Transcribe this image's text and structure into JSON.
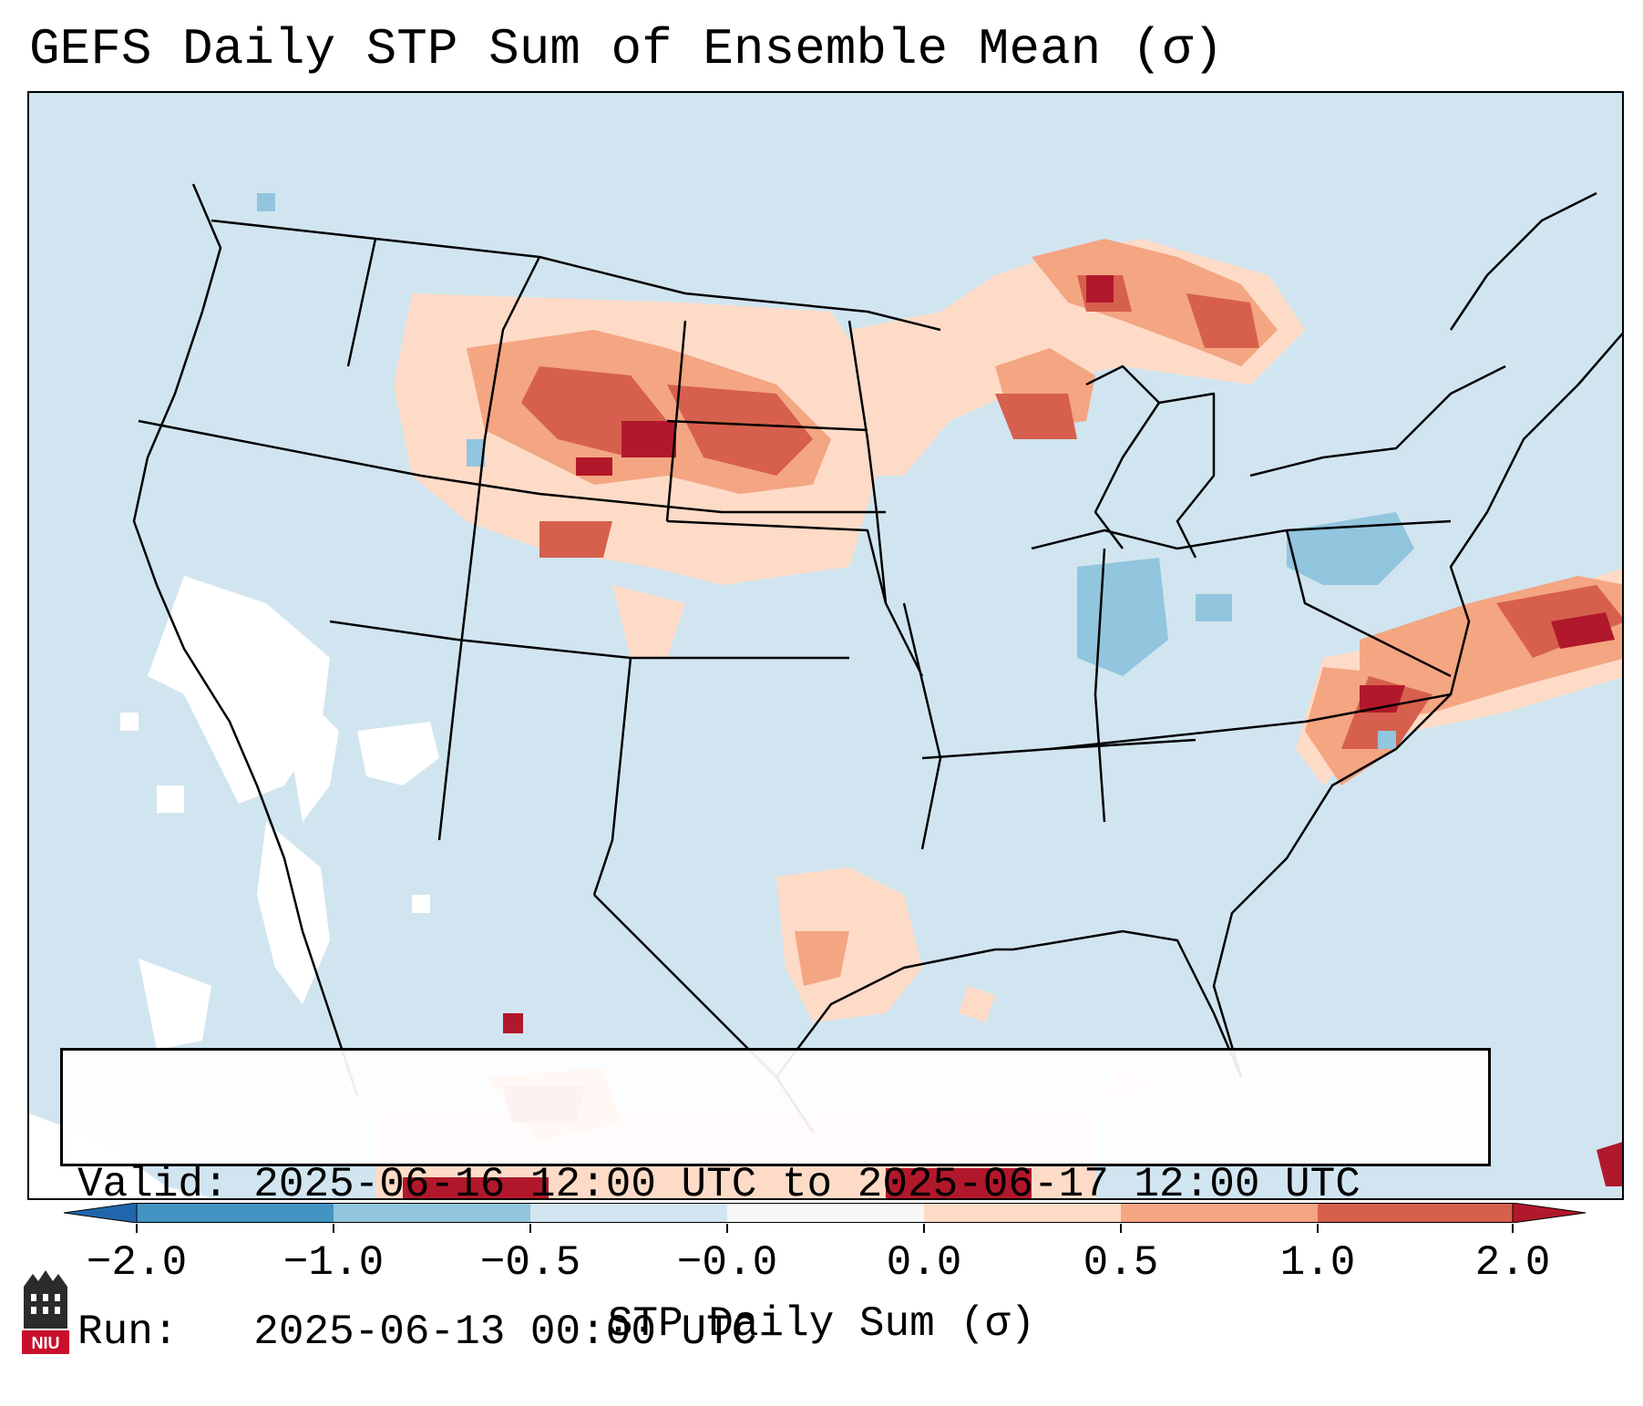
{
  "title": "GEFS Daily STP Sum of Ensemble Mean (σ)",
  "info": {
    "valid_label": "Valid:",
    "valid_value": "2025-06-16 12:00 UTC to 2025-06-17 12:00 UTC",
    "run_label": "Run:",
    "run_value": "2025-06-13 00:00 UTC"
  },
  "colorbar": {
    "label": "STP Daily Sum (σ)",
    "ticks": [
      "−2.0",
      "−1.0",
      "−0.5",
      "−0.0",
      "0.0",
      "0.5",
      "1.0",
      "2.0"
    ],
    "colors": [
      "#2166ac",
      "#4393c3",
      "#92c5de",
      "#d1e5f0",
      "#f7f7f7",
      "#fddbc7",
      "#f4a582",
      "#d6604d",
      "#b2182b"
    ],
    "extend": "both"
  },
  "logo": {
    "text": "NIU"
  },
  "colors": {
    "ocean_background": "#d1e5f0",
    "strong_positive": "#b2182b",
    "negative": "#92c5de"
  }
}
